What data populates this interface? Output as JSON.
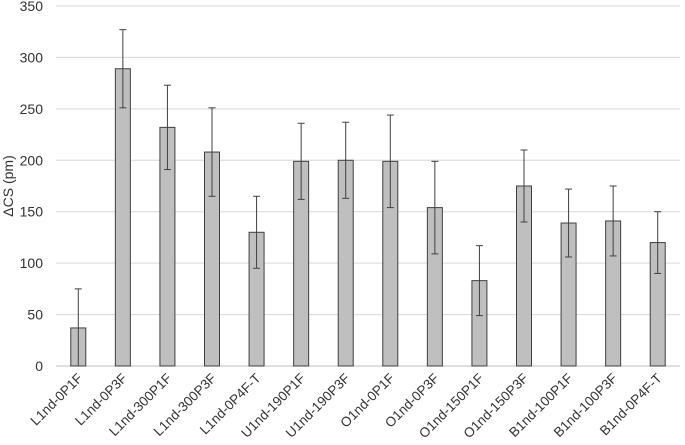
{
  "chart_data": {
    "type": "bar",
    "title": "",
    "xlabel": "",
    "ylabel": "ΔCS (pm)",
    "ylim": [
      0,
      350
    ],
    "yticks": [
      0,
      50,
      100,
      150,
      200,
      250,
      300,
      350
    ],
    "grid": true,
    "legend": "none",
    "categories": [
      "L1nd-0P1F",
      "L1nd-0P3F",
      "L1nd-300P1F",
      "L1nd-300P3F",
      "L1nd-0P4F-T",
      "U1nd-190P1F",
      "U1nd-190P3F",
      "O1nd-0P1F",
      "O1nd-0P3F",
      "O1nd-150P1F",
      "O1nd-150P3F",
      "B1nd-100P1F",
      "B1nd-100P3F",
      "B1nd-0P4F-T"
    ],
    "series": [
      {
        "name": "ΔCS",
        "values": [
          37,
          289,
          232,
          208,
          130,
          199,
          200,
          199,
          154,
          83,
          175,
          139,
          141,
          120
        ],
        "error": [
          38,
          38,
          41,
          43,
          35,
          37,
          37,
          45,
          45,
          34,
          35,
          33,
          34,
          30
        ]
      }
    ],
    "colors": {
      "bar_fill": "#bfbfbf",
      "bar_stroke": "#404040",
      "grid": "#d9d9d9",
      "axis": "#bfbfbf",
      "error_bar": "#404040"
    }
  }
}
